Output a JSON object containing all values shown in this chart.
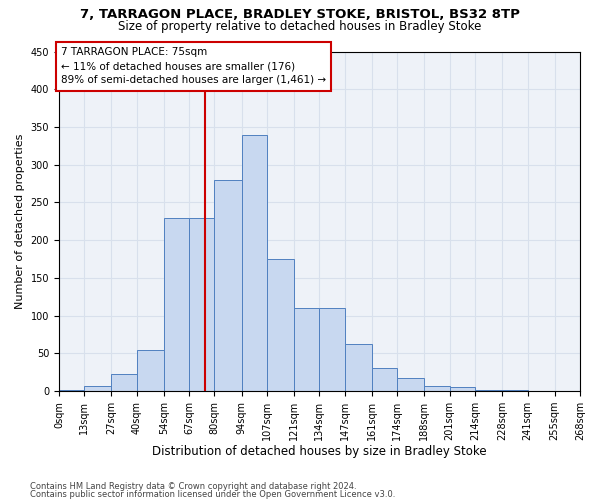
{
  "title1": "7, TARRAGON PLACE, BRADLEY STOKE, BRISTOL, BS32 8TP",
  "title2": "Size of property relative to detached houses in Bradley Stoke",
  "xlabel": "Distribution of detached houses by size in Bradley Stoke",
  "ylabel": "Number of detached properties",
  "bin_edges": [
    0,
    13,
    27,
    40,
    54,
    67,
    80,
    94,
    107,
    121,
    134,
    147,
    161,
    174,
    188,
    201,
    214,
    228,
    241,
    255,
    268
  ],
  "bar_heights": [
    2,
    7,
    23,
    55,
    230,
    230,
    280,
    340,
    175,
    110,
    110,
    63,
    30,
    18,
    7,
    5,
    2,
    1,
    0,
    0
  ],
  "bar_facecolor": "#c8d8f0",
  "bar_edgecolor": "#5080c0",
  "vline_x": 75,
  "vline_color": "#cc0000",
  "annotation_text": "7 TARRAGON PLACE: 75sqm\n← 11% of detached houses are smaller (176)\n89% of semi-detached houses are larger (1,461) →",
  "annotation_box_facecolor": "#ffffff",
  "annotation_box_edgecolor": "#cc0000",
  "ylim": [
    0,
    450
  ],
  "yticks": [
    0,
    50,
    100,
    150,
    200,
    250,
    300,
    350,
    400,
    450
  ],
  "plot_bg_color": "#eef2f8",
  "fig_bg_color": "#ffffff",
  "grid_color": "#d8e0ec",
  "footnote1": "Contains HM Land Registry data © Crown copyright and database right 2024.",
  "footnote2": "Contains public sector information licensed under the Open Government Licence v3.0.",
  "title1_fontsize": 9.5,
  "title2_fontsize": 8.5,
  "xlabel_fontsize": 8.5,
  "ylabel_fontsize": 8,
  "tick_fontsize": 7,
  "annotation_fontsize": 7.5,
  "footnote_fontsize": 6.0
}
